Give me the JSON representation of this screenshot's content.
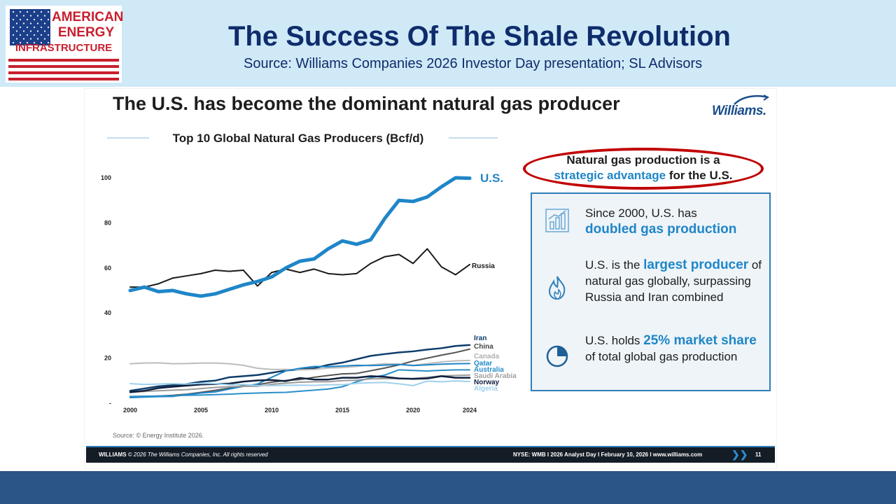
{
  "banner": {
    "logo_line1": "AMERICAN",
    "logo_line2": "ENERGY",
    "logo_line3": "INFRASTRUCTURE",
    "title": "The Success Of The Shale Revolution",
    "source": "Source: Williams Companies 2026 Investor Day presentation; SL Advisors"
  },
  "slide": {
    "title": "The U.S. has become the dominant natural gas producer",
    "logo_text": "Williams.",
    "callout_line1": "Natural gas production is a",
    "callout_highlight": "strategic advantage",
    "callout_rest": " for the U.S.",
    "facts": [
      {
        "icon": "bar-growth-icon",
        "pre": "Since 2000, U.S. has",
        "highlight": "doubled gas production",
        "post": ""
      },
      {
        "icon": "flame-icon",
        "pre": "U.S. is the",
        "highlight": "largest producer",
        "post": "of natural gas globally, surpassing Russia and Iran combined"
      },
      {
        "icon": "pie-share-icon",
        "pre": "U.S. holds",
        "highlight": "25% market share",
        "post": "of total global gas production"
      }
    ],
    "chart_source": "Source: © Energy Institute 2026.",
    "footer_left_bold": "WILLIAMS",
    "footer_left_italic": "© 2026 The Williams Companies, Inc. All rights reserved",
    "footer_right": "NYSE: WMB  I  2026 Analyst Day  I  February 10, 2026  I  www.williams.com",
    "footer_chevrons": "❯❯",
    "page_number": "11"
  },
  "colors": {
    "us": "#1f86c8",
    "russia": "#1a1a1a",
    "accent_red": "#c00000",
    "navy": "#0f2c6b"
  },
  "chart_data": {
    "type": "line",
    "title": "Top 10 Global Natural Gas Producers (Bcf/d)",
    "xlabel": "",
    "ylabel": "",
    "xlim": [
      2000,
      2024
    ],
    "ylim": [
      0,
      100
    ],
    "x_ticks": [
      "2000",
      "2005",
      "2010",
      "2015",
      "2020",
      "2024"
    ],
    "y_ticks": [
      "-",
      "20",
      "40",
      "60",
      "80",
      "100"
    ],
    "x": [
      2000,
      2001,
      2002,
      2003,
      2004,
      2005,
      2006,
      2007,
      2008,
      2009,
      2010,
      2011,
      2012,
      2013,
      2014,
      2015,
      2016,
      2017,
      2018,
      2019,
      2020,
      2021,
      2022,
      2023,
      2024
    ],
    "series": [
      {
        "name": "U.S.",
        "color": "#1f86c8",
        "width": 5,
        "label_color": "#1f86c8",
        "values": [
          50,
          51.5,
          49.5,
          50,
          48.5,
          47.5,
          48.5,
          50.5,
          52.5,
          54,
          56,
          60,
          63,
          64,
          68.5,
          72,
          70.5,
          72.5,
          82,
          90,
          89.5,
          91.5,
          96,
          100,
          99.8
        ]
      },
      {
        "name": "Russia",
        "color": "#1a1a1a",
        "width": 2,
        "label_color": "#1a1a1a",
        "values": [
          51.5,
          51.5,
          53,
          55.5,
          56.5,
          57.5,
          59,
          58.5,
          59,
          52,
          58,
          59.5,
          58,
          59.5,
          57.5,
          57,
          57.5,
          62,
          65,
          66,
          62,
          68.5,
          60.5,
          57,
          61.5
        ]
      },
      {
        "name": "Iran",
        "color": "#0d3d6b",
        "width": 2.5,
        "label_color": "#0d3d6b",
        "values": [
          5.5,
          6.5,
          7.5,
          8,
          8.5,
          9.5,
          10,
          11.5,
          12,
          12.5,
          13.5,
          14.5,
          15,
          15.5,
          17,
          18,
          19.5,
          21,
          21.8,
          22.5,
          23,
          23.8,
          24.4,
          25.4,
          25.8
        ]
      },
      {
        "name": "China",
        "color": "#555555",
        "width": 2,
        "label_color": "#444444",
        "values": [
          2.6,
          2.9,
          3.2,
          3.5,
          4,
          4.8,
          5.7,
          6.7,
          7.8,
          8.2,
          9.3,
          10.1,
          10.5,
          11.5,
          12.3,
          13,
          13.2,
          14.4,
          15.6,
          17,
          18.7,
          20,
          21.3,
          22.5,
          24
        ]
      },
      {
        "name": "Canada",
        "color": "#bcbcbc",
        "width": 2,
        "label_color": "#b0b0b0",
        "values": [
          17.5,
          17.8,
          17.9,
          17.5,
          17.6,
          17.8,
          17.8,
          17.5,
          16.8,
          15.5,
          15,
          15,
          14.8,
          15,
          15.6,
          15.8,
          16.3,
          17,
          17.5,
          17.3,
          16.8,
          17.5,
          18.3,
          18.8,
          19
        ]
      },
      {
        "name": "Qatar",
        "color": "#1f86c8",
        "width": 2,
        "label_color": "#1f86c8",
        "values": [
          2.5,
          2.7,
          2.9,
          3,
          3.8,
          4.5,
          5,
          6.3,
          7.5,
          8.5,
          11.5,
          14.3,
          15.5,
          16.3,
          16.2,
          16.5,
          16.8,
          16.7,
          16.9,
          17.2,
          16.7,
          17,
          17.3,
          17.5,
          17.6
        ]
      },
      {
        "name": "Australia",
        "color": "#2a8fc9",
        "width": 2,
        "label_color": "#2a8fc9",
        "values": [
          3,
          3.1,
          3.2,
          3.3,
          3.5,
          3.6,
          3.8,
          4,
          4.3,
          4.5,
          4.7,
          4.8,
          5.3,
          5.8,
          6.3,
          7.3,
          9.5,
          11.3,
          12.5,
          14.8,
          14.5,
          14.3,
          14.6,
          14.8,
          14.8
        ]
      },
      {
        "name": "Saudi Arabia",
        "color": "#9a9a9a",
        "width": 2,
        "label_color": "#a0a0a0",
        "values": [
          4.8,
          5.2,
          5.5,
          5.8,
          6,
          6.5,
          7,
          7.3,
          7.5,
          7.5,
          8.4,
          8.9,
          9.3,
          9.5,
          9.5,
          10,
          10.2,
          10.8,
          10.9,
          10.9,
          11,
          11.5,
          12.1,
          12.3,
          12.5
        ]
      },
      {
        "name": "Norway",
        "color": "#0e1f3d",
        "width": 2.5,
        "label_color": "#0e1f3d",
        "values": [
          4.9,
          5.5,
          6.7,
          7.3,
          7.8,
          8.3,
          8.5,
          8.7,
          9.6,
          10.1,
          10.3,
          9.8,
          11.2,
          10.5,
          10.5,
          11.3,
          11.3,
          12,
          11.7,
          11,
          10.8,
          11,
          12,
          11.3,
          11.3
        ]
      },
      {
        "name": "Algeria",
        "color": "#9fd0ec",
        "width": 2,
        "label_color": "#9fd0ec",
        "values": [
          8.7,
          8.3,
          8.5,
          8.7,
          8.5,
          8.8,
          8.7,
          8.2,
          8.3,
          7.8,
          7.8,
          7.9,
          8,
          7.9,
          8.2,
          8.2,
          8.8,
          9.1,
          9.2,
          8.6,
          7.8,
          9.8,
          9.5,
          9.9,
          9.6
        ]
      }
    ]
  }
}
